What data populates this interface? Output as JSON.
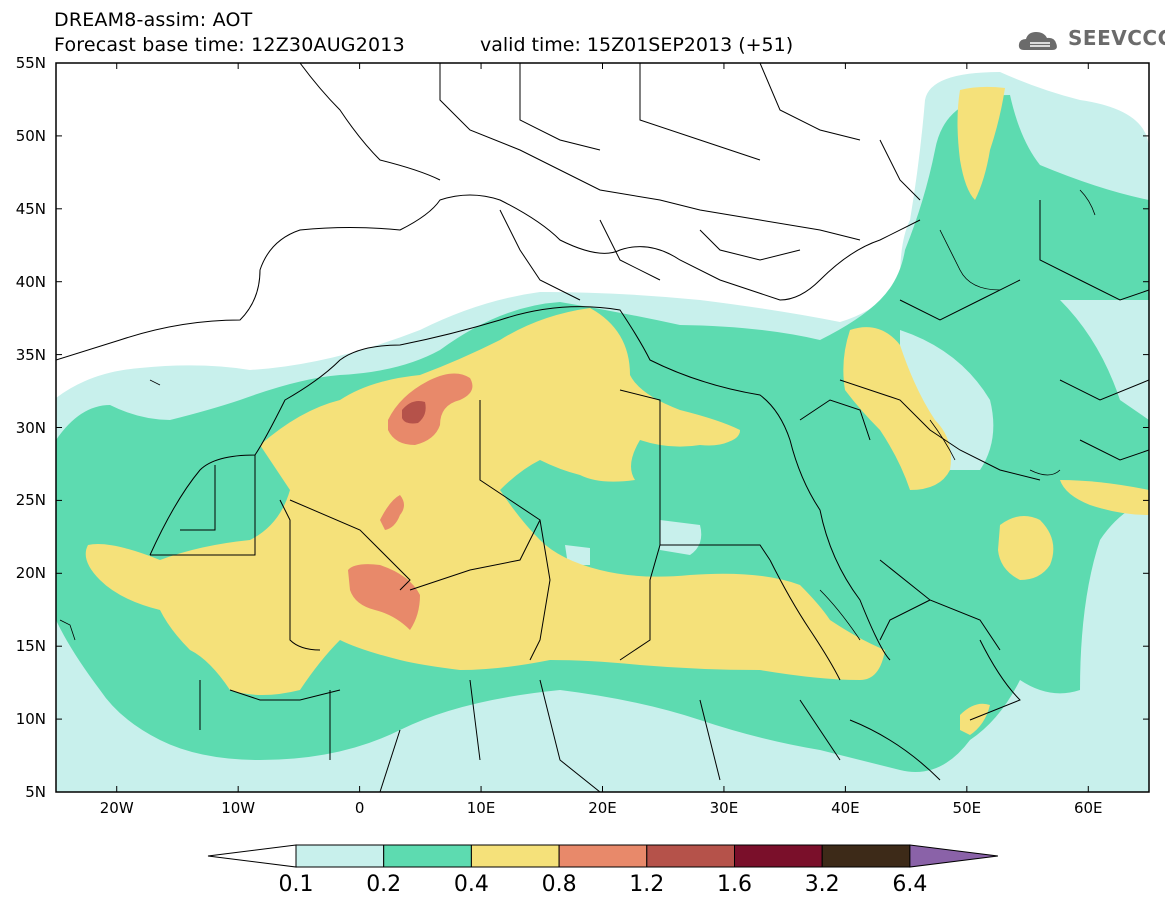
{
  "header": {
    "title": "DREAM8-assim: AOT",
    "base_time": "Forecast base time: 12Z30AUG2013",
    "valid_time": "valid time: 15Z01SEP2013 (+51)",
    "logo_text": "SEEVCCC",
    "logo_icon": "cloud-logo-icon"
  },
  "axes": {
    "lat_labels": [
      "55N",
      "50N",
      "45N",
      "40N",
      "35N",
      "30N",
      "25N",
      "20N",
      "15N",
      "10N",
      "5N"
    ],
    "lon_labels": [
      "20W",
      "10W",
      "0",
      "10E",
      "20E",
      "30E",
      "40E",
      "50E",
      "60E"
    ],
    "lat_range": [
      5,
      55
    ],
    "lon_range": [
      -25,
      65
    ]
  },
  "colorbar": {
    "labels": [
      "0.1",
      "0.2",
      "0.4",
      "0.8",
      "1.2",
      "1.6",
      "3.2",
      "6.4"
    ],
    "colors": [
      "#ffffff",
      "#c8f0ec",
      "#5ddbb0",
      "#f5e17a",
      "#e8896a",
      "#b5524a",
      "#7a0f2a",
      "#3d2a18",
      "#8a62a8"
    ]
  },
  "field_colors": {
    "light": "#c8f0ec",
    "medium": "#5ddbb0",
    "yellow": "#f5e17a",
    "orange": "#e8896a",
    "brown": "#b5524a"
  }
}
